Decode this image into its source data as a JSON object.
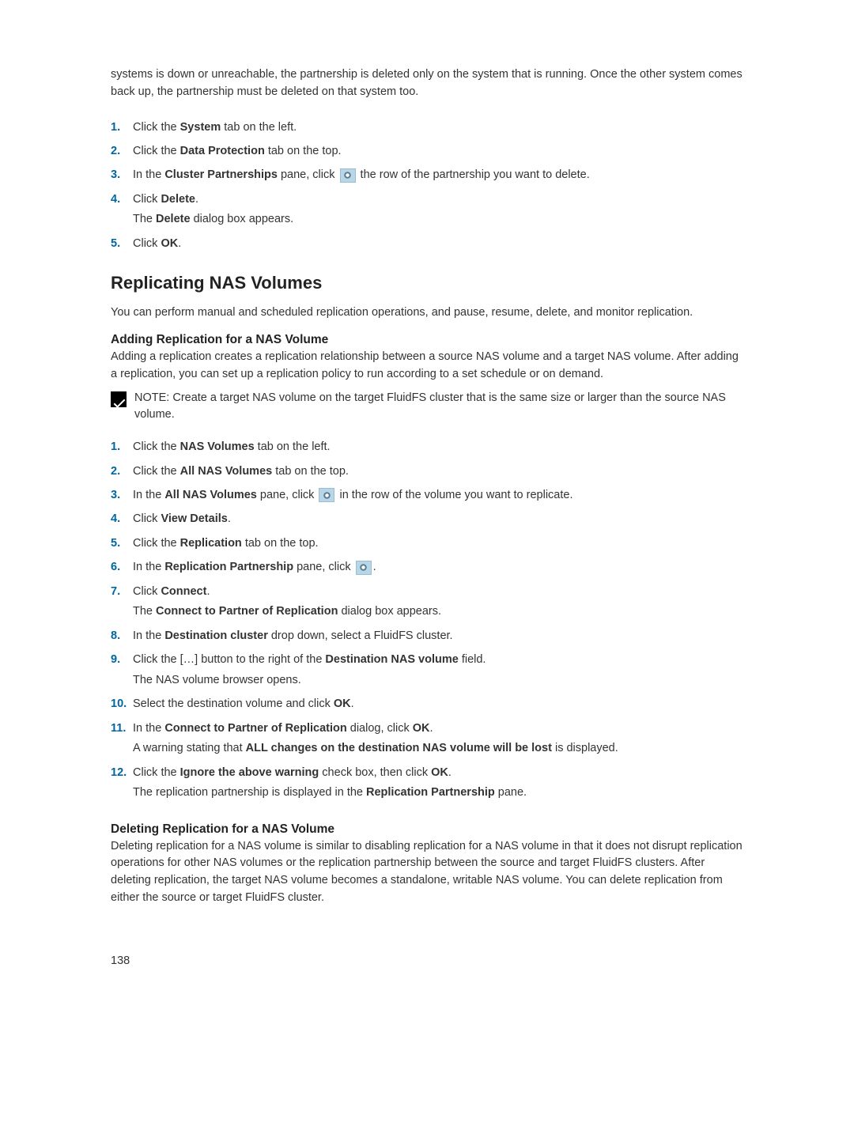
{
  "intro": "systems is down or unreachable, the partnership is deleted only on the system that is running. Once the other system comes back up, the partnership must be deleted on that system too.",
  "steps1": {
    "s1": {
      "n": "1.",
      "pre": "Click the ",
      "b": "System",
      "post": " tab on the left."
    },
    "s2": {
      "n": "2.",
      "pre": "Click the ",
      "b": "Data Protection",
      "post": " tab on the top."
    },
    "s3": {
      "n": "3.",
      "pre": "In the ",
      "b": "Cluster Partnerships",
      "mid": " pane, click ",
      "post": " the row of the partnership you want to delete."
    },
    "s4": {
      "n": "4.",
      "pre": "Click ",
      "b": "Delete",
      "post": ".",
      "sub_pre": "The ",
      "sub_b": "Delete",
      "sub_post": " dialog box appears."
    },
    "s5": {
      "n": "5.",
      "pre": "Click ",
      "b": "OK",
      "post": "."
    }
  },
  "h2": "Replicating NAS Volumes",
  "h2_para": "You can perform manual and scheduled replication operations, and pause, resume, delete, and monitor replication.",
  "h3_add": "Adding Replication for a NAS Volume",
  "h3_add_para": "Adding a replication creates a replication relationship between a source NAS volume and a target NAS volume. After adding a replication, you can set up a replication policy to run according to a set schedule or on demand.",
  "note": {
    "label": "NOTE: ",
    "text": "Create a target NAS volume on the target FluidFS cluster that is the same size or larger than the source NAS volume."
  },
  "steps2": {
    "s1": {
      "n": "1.",
      "pre": "Click the ",
      "b": "NAS Volumes",
      "post": " tab on the left."
    },
    "s2": {
      "n": "2.",
      "pre": "Click the ",
      "b": "All NAS Volumes",
      "post": " tab on the top."
    },
    "s3": {
      "n": "3.",
      "pre": "In the ",
      "b": "All NAS Volumes",
      "mid": " pane, click ",
      "post": " in the row of the volume you want to replicate."
    },
    "s4": {
      "n": "4.",
      "pre": "Click ",
      "b": "View Details",
      "post": "."
    },
    "s5": {
      "n": "5.",
      "pre": "Click the ",
      "b": "Replication",
      "post": " tab on the top."
    },
    "s6": {
      "n": "6.",
      "pre": "In the ",
      "b": "Replication Partnership",
      "mid": " pane, click ",
      "post": "."
    },
    "s7": {
      "n": "7.",
      "pre": "Click ",
      "b": "Connect",
      "post": ".",
      "sub_pre": "The ",
      "sub_b": "Connect to Partner of Replication",
      "sub_post": " dialog box appears."
    },
    "s8": {
      "n": "8.",
      "pre": "In the ",
      "b": "Destination cluster",
      "post": " drop down, select a FluidFS cluster."
    },
    "s9": {
      "n": "9.",
      "pre": "Click the […] button to the right of the ",
      "b": "Destination NAS volume",
      "post": " field.",
      "sub": "The NAS volume browser opens."
    },
    "s10": {
      "n": "10.",
      "pre": "Select the destination volume and click ",
      "b": "OK",
      "post": "."
    },
    "s11": {
      "n": "11.",
      "pre": "In the ",
      "b": "Connect to Partner of Replication",
      "mid": " dialog, click ",
      "b2": "OK",
      "post": ".",
      "sub_pre": "A warning stating that ",
      "sub_b": "ALL changes on the destination NAS volume will be lost",
      "sub_post": " is displayed."
    },
    "s12": {
      "n": "12.",
      "pre": "Click the ",
      "b": "Ignore the above warning",
      "mid": " check box, then click ",
      "b2": "OK",
      "post": ".",
      "sub_pre": "The replication partnership is displayed in the ",
      "sub_b": "Replication Partnership",
      "sub_post": " pane."
    }
  },
  "h3_del": "Deleting Replication for a NAS Volume",
  "h3_del_para": "Deleting replication for a NAS volume is similar to disabling replication for a NAS volume in that it does not disrupt replication operations for other NAS volumes or the replication partnership between the source and target FluidFS clusters. After deleting replication, the target NAS volume becomes a standalone, writable NAS volume. You can delete replication from either the source or target FluidFS cluster.",
  "page_number": "138"
}
